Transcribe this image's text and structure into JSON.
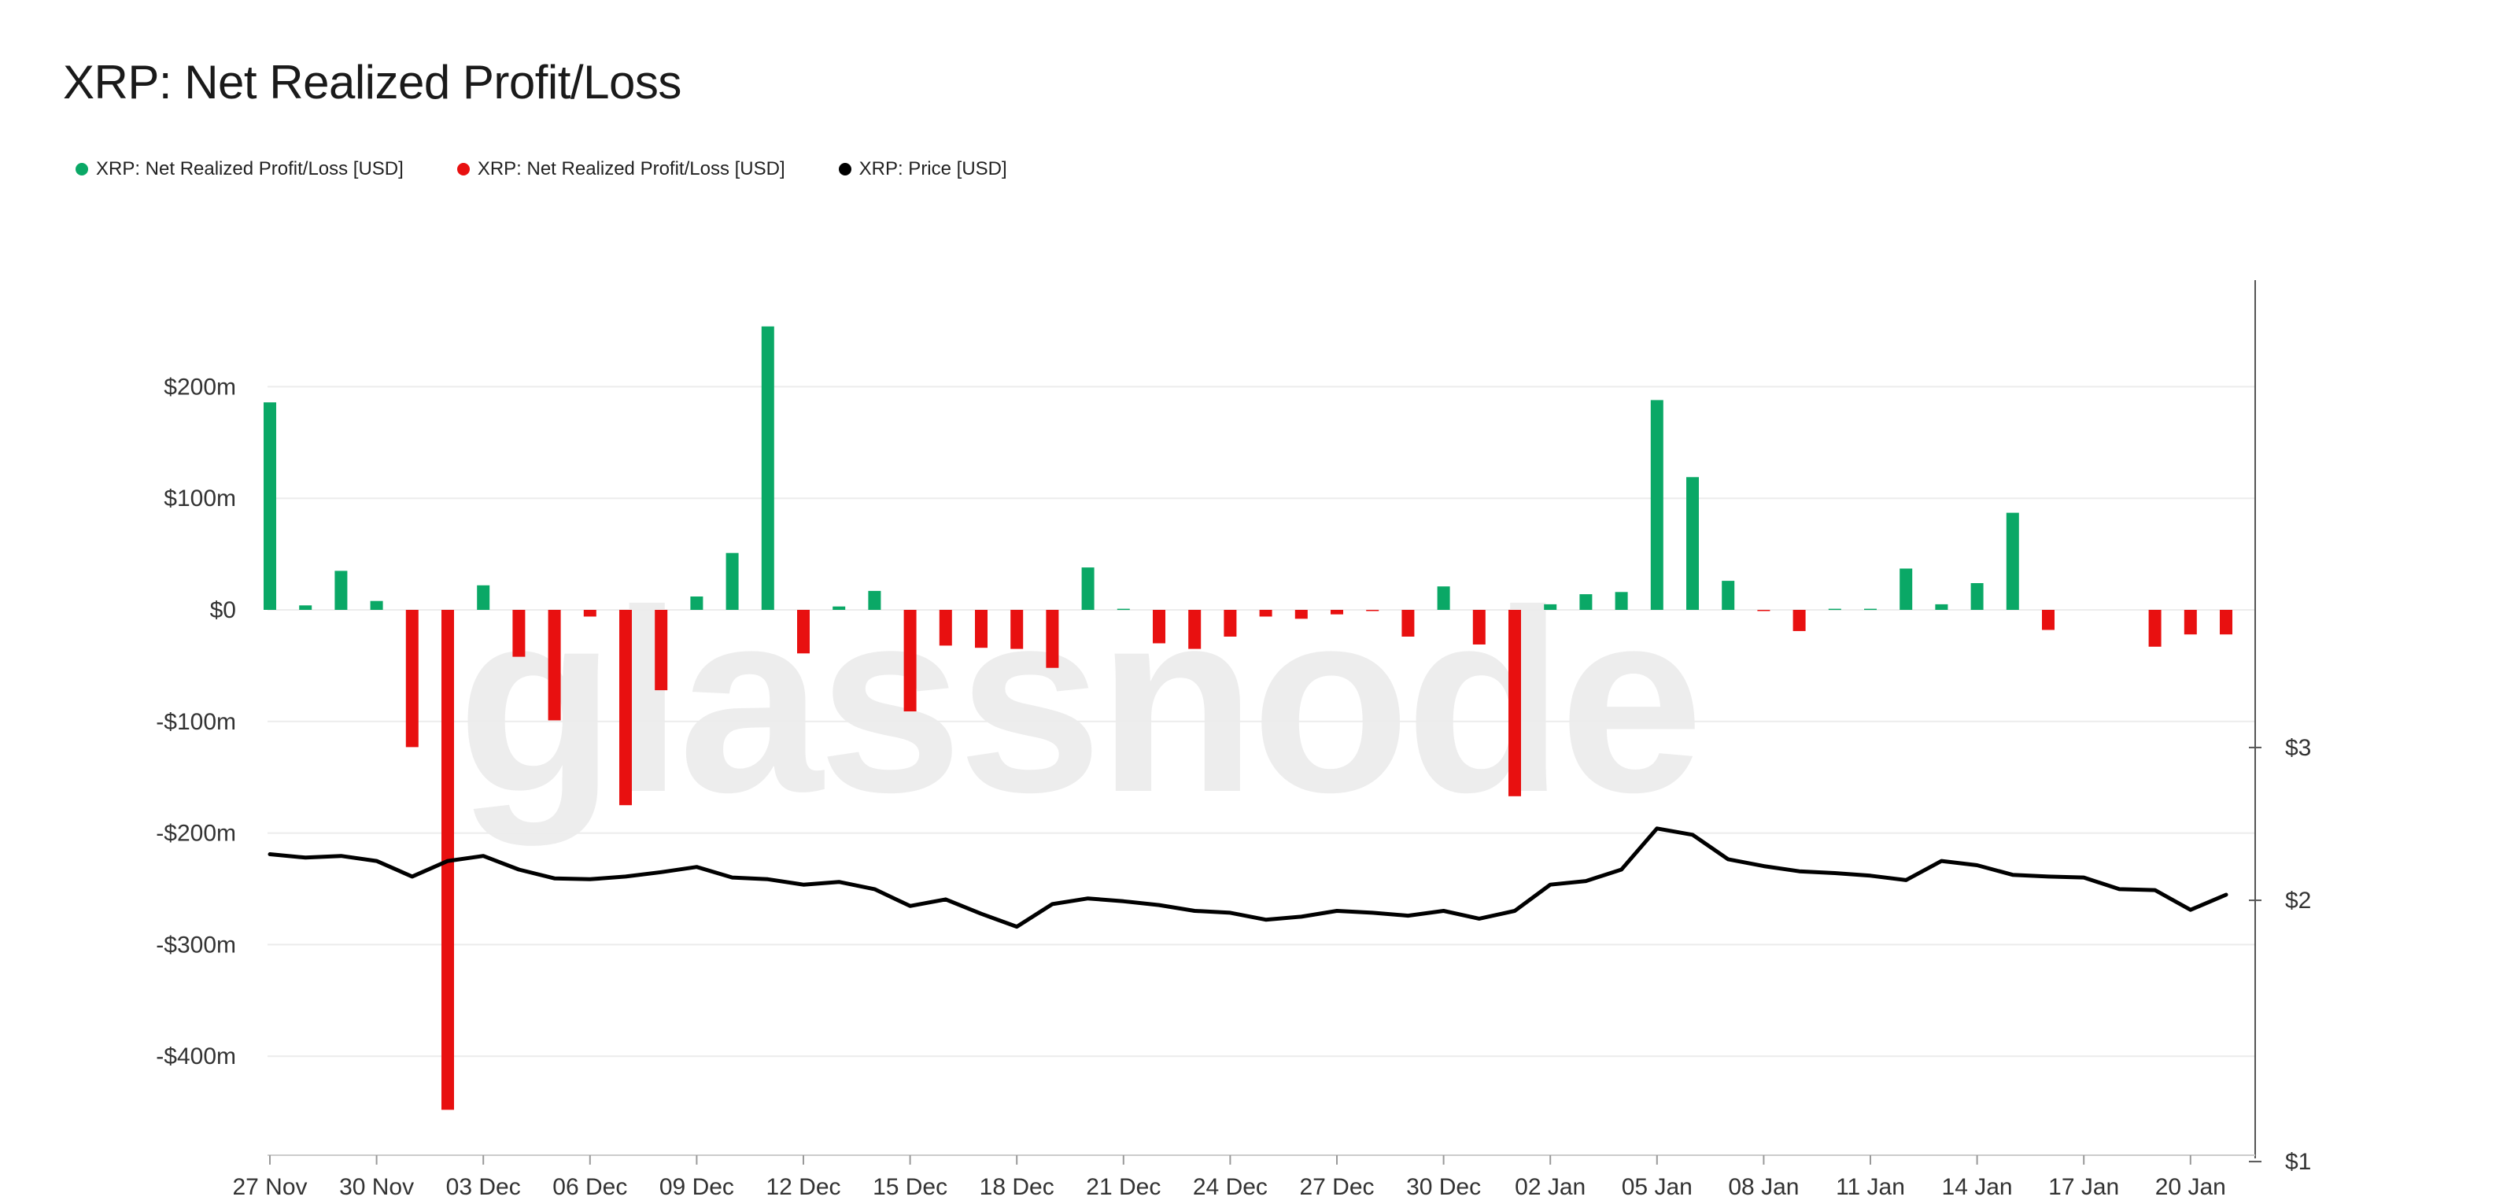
{
  "title": "XRP: Net Realized Profit/Loss",
  "watermark": "glassnode",
  "legend": [
    {
      "label": "XRP: Net Realized Profit/Loss [USD]",
      "color": "#0aa866"
    },
    {
      "label": "XRP: Net Realized Profit/Loss [USD]",
      "color": "#e81010"
    },
    {
      "label": "XRP: Price [USD]",
      "color": "#000000"
    }
  ],
  "chart_data": {
    "type": "bar",
    "title": "XRP: Net Realized Profit/Loss",
    "grid": true,
    "legend_placement": "top-left",
    "x_tick_labels": [
      "27 Nov",
      "30 Nov",
      "03 Dec",
      "06 Dec",
      "09 Dec",
      "12 Dec",
      "15 Dec",
      "18 Dec",
      "21 Dec",
      "24 Dec",
      "27 Dec",
      "30 Dec",
      "02 Jan",
      "05 Jan",
      "08 Jan",
      "11 Jan",
      "14 Jan",
      "17 Jan",
      "20 Jan"
    ],
    "y_left": {
      "ylim": [
        -490,
        300
      ],
      "ticks": [
        200,
        100,
        0,
        -100,
        -200,
        -300,
        -400
      ],
      "tick_labels": [
        "$200m",
        "$100m",
        "$0",
        "-$100m",
        "-$200m",
        "-$300m",
        "-$400m"
      ]
    },
    "y_right": {
      "scale": "log",
      "ylim": [
        1,
        3
      ],
      "ticks": [
        3,
        2,
        1
      ],
      "tick_labels": [
        "$3",
        "$2",
        "$1"
      ]
    },
    "x": [
      "27 Nov",
      "28 Nov",
      "29 Nov",
      "30 Nov",
      "01 Dec",
      "02 Dec",
      "03 Dec",
      "04 Dec",
      "05 Dec",
      "06 Dec",
      "07 Dec",
      "08 Dec",
      "09 Dec",
      "10 Dec",
      "11 Dec",
      "12 Dec",
      "13 Dec",
      "14 Dec",
      "15 Dec",
      "16 Dec",
      "17 Dec",
      "18 Dec",
      "19 Dec",
      "20 Dec",
      "21 Dec",
      "22 Dec",
      "23 Dec",
      "24 Dec",
      "25 Dec",
      "26 Dec",
      "27 Dec",
      "28 Dec",
      "29 Dec",
      "30 Dec",
      "31 Dec",
      "01 Jan",
      "02 Jan",
      "03 Jan",
      "04 Jan",
      "05 Jan",
      "06 Jan",
      "07 Jan",
      "08 Jan",
      "09 Jan",
      "10 Jan",
      "11 Jan",
      "12 Jan",
      "13 Jan",
      "14 Jan",
      "15 Jan",
      "16 Jan",
      "17 Jan",
      "18 Jan",
      "19 Jan",
      "20 Jan",
      "21 Jan"
    ],
    "series": [
      {
        "type": "bar",
        "axis": "left",
        "color_positive": "#0aa866",
        "color_negative": "#e81010",
        "values": [
          186,
          4,
          35,
          8,
          -123,
          -448,
          22,
          -42,
          -99,
          -6,
          -175,
          -72,
          12,
          51,
          254,
          -39,
          3,
          17,
          -91,
          -32,
          -34,
          -35,
          -52,
          38,
          1,
          -30,
          -35,
          -24,
          -6,
          -8,
          -4,
          -1,
          -24,
          21,
          -31,
          -167,
          5,
          14,
          16,
          188,
          119,
          26,
          -1,
          -19,
          1,
          1,
          37,
          5,
          24,
          87,
          -18,
          0,
          0,
          -33,
          -22,
          -22
        ]
      },
      {
        "type": "line",
        "axis": "right",
        "color": "#000000",
        "values": [
          2.26,
          2.24,
          2.25,
          2.22,
          2.13,
          2.22,
          2.25,
          2.17,
          2.12,
          2.115,
          2.13,
          2.155,
          2.185,
          2.125,
          2.115,
          2.085,
          2.1,
          2.06,
          1.97,
          2.005,
          1.93,
          1.865,
          1.98,
          2.01,
          1.995,
          1.975,
          1.945,
          1.935,
          1.9,
          1.915,
          1.945,
          1.935,
          1.92,
          1.945,
          1.905,
          1.945,
          2.085,
          2.105,
          2.17,
          2.42,
          2.38,
          2.23,
          2.19,
          2.16,
          2.15,
          2.135,
          2.11,
          2.22,
          2.195,
          2.14,
          2.13,
          2.125,
          2.06,
          2.055,
          1.95,
          2.03
        ]
      }
    ]
  }
}
